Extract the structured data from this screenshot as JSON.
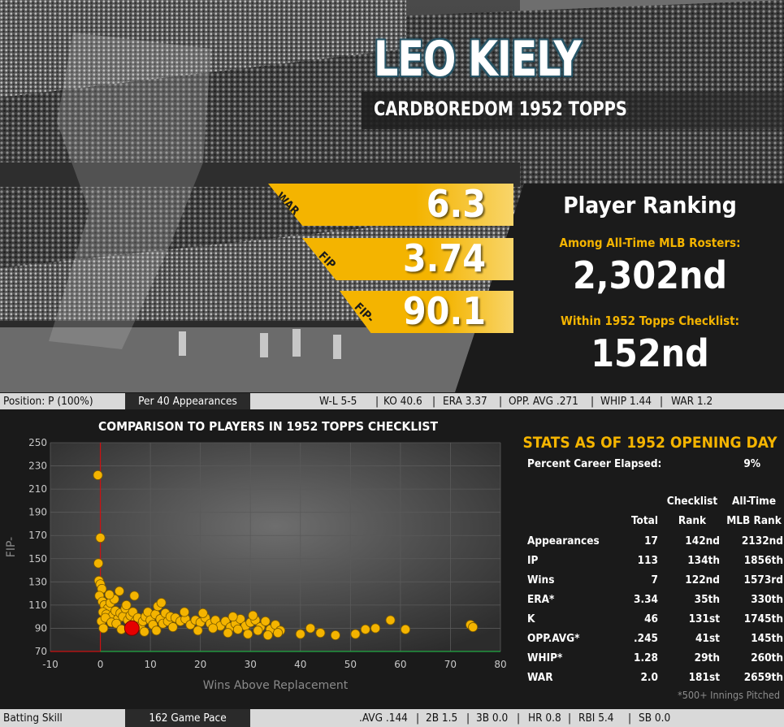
{
  "player": {
    "name": "LEO KIELY",
    "subtitle": "CARDBOREDOM 1952 TOPPS"
  },
  "headline_stats": [
    {
      "label": "WAR",
      "value": "6.3"
    },
    {
      "label": "FIP",
      "value": "3.74"
    },
    {
      "label": "FIP-",
      "value": "90.1"
    }
  ],
  "ranking": {
    "title": "Player Ranking",
    "alltime_label": "Among All-Time MLB Rosters:",
    "alltime_value": "2,302nd",
    "checklist_label": "Within 1952 Topps Checklist:",
    "checklist_value": "152nd"
  },
  "pitching_bar": {
    "position": "Position: P (100%)",
    "pace": "Per 40 Appearances",
    "items": [
      "W-L  5-5",
      "KO  40.6",
      "ERA  3.37",
      "OPP. AVG  .271",
      "WHIP  1.44",
      "WAR  1.2"
    ]
  },
  "batting_bar": {
    "label": "Batting Skill",
    "pace": "162 Game Pace",
    "items": [
      ".AVG  .144",
      "2B  1.5",
      "3B  0.0",
      "HR  0.8",
      "RBI  5.4",
      "SB  0.0"
    ]
  },
  "colors": {
    "accent": "#f4b400",
    "highlight": "#e60000",
    "panel": "#1a1a1a"
  },
  "chart_data": {
    "type": "scatter",
    "title": "COMPARISON TO PLAYERS IN 1952 TOPPS CHECKLIST",
    "xlabel": "Wins Above Replacement",
    "ylabel": "FIP-",
    "xlim": [
      -10,
      80
    ],
    "ylim": [
      70,
      250
    ],
    "xticks": [
      -10,
      0,
      10,
      20,
      30,
      40,
      50,
      60,
      70,
      80
    ],
    "yticks": [
      70,
      90,
      110,
      130,
      150,
      170,
      190,
      210,
      230,
      250
    ],
    "grid": true,
    "highlight": {
      "name": "Leo Kiely",
      "x": 6.3,
      "y": 90.1
    },
    "points": [
      [
        -0.5,
        222
      ],
      [
        0,
        168
      ],
      [
        -0.4,
        146
      ],
      [
        -0.3,
        131
      ],
      [
        0,
        128
      ],
      [
        0.3,
        124
      ],
      [
        -0.2,
        118
      ],
      [
        0.4,
        113
      ],
      [
        0.8,
        110
      ],
      [
        1.5,
        107
      ],
      [
        2.0,
        112
      ],
      [
        0.5,
        104
      ],
      [
        1.2,
        102
      ],
      [
        2.5,
        101
      ],
      [
        3.0,
        105
      ],
      [
        0.2,
        96
      ],
      [
        1.0,
        99
      ],
      [
        3.5,
        98
      ],
      [
        4.0,
        103
      ],
      [
        4.5,
        100
      ],
      [
        5.0,
        107
      ],
      [
        0.6,
        90
      ],
      [
        2.2,
        95
      ],
      [
        3.2,
        94
      ],
      [
        5.5,
        97
      ],
      [
        6.0,
        101
      ],
      [
        6.5,
        104
      ],
      [
        7.0,
        96
      ],
      [
        7.5,
        99
      ],
      [
        8.0,
        92
      ],
      [
        8.5,
        96
      ],
      [
        9.0,
        100
      ],
      [
        9.5,
        104
      ],
      [
        10,
        97
      ],
      [
        10.5,
        93
      ],
      [
        11,
        102
      ],
      [
        11.5,
        109
      ],
      [
        12,
        98
      ],
      [
        12.5,
        94
      ],
      [
        13,
        103
      ],
      [
        13.5,
        96
      ],
      [
        14,
        100
      ],
      [
        15,
        99
      ],
      [
        16,
        96
      ],
      [
        17,
        98
      ],
      [
        18,
        93
      ],
      [
        19,
        97
      ],
      [
        20,
        95
      ],
      [
        21,
        99
      ],
      [
        22,
        94
      ],
      [
        23,
        97
      ],
      [
        24,
        92
      ],
      [
        25,
        96
      ],
      [
        26,
        91
      ],
      [
        27,
        94
      ],
      [
        28,
        98
      ],
      [
        29,
        92
      ],
      [
        30,
        95
      ],
      [
        31,
        97
      ],
      [
        32,
        91
      ],
      [
        33,
        96
      ],
      [
        34,
        89
      ],
      [
        35,
        93
      ],
      [
        36,
        88
      ],
      [
        5.2,
        110
      ],
      [
        2.8,
        115
      ],
      [
        1.8,
        119
      ],
      [
        4.2,
        89
      ],
      [
        8.8,
        87
      ],
      [
        11.2,
        88
      ],
      [
        14.5,
        91
      ],
      [
        19.5,
        88
      ],
      [
        22.5,
        90
      ],
      [
        25.5,
        86
      ],
      [
        27.5,
        89
      ],
      [
        29.5,
        85
      ],
      [
        31.5,
        88
      ],
      [
        33.5,
        84
      ],
      [
        35.5,
        86
      ],
      [
        40,
        85
      ],
      [
        42,
        90
      ],
      [
        44,
        86
      ],
      [
        47,
        84
      ],
      [
        51,
        85
      ],
      [
        53,
        89
      ],
      [
        55,
        90
      ],
      [
        58,
        97
      ],
      [
        61,
        89
      ],
      [
        74,
        93
      ],
      [
        74.5,
        91
      ],
      [
        3.8,
        122
      ],
      [
        6.8,
        118
      ],
      [
        12.2,
        112
      ],
      [
        16.8,
        104
      ],
      [
        20.5,
        103
      ],
      [
        26.5,
        100
      ],
      [
        30.5,
        101
      ]
    ]
  },
  "stats_table": {
    "title": "STATS AS OF 1952 OPENING DAY",
    "career_label": "Percent Career Elapsed:",
    "career_value": "9%",
    "headers": {
      "total": "Total",
      "checklist_top": "Checklist",
      "checklist_bottom": "Rank",
      "alltime_top": "All-Time",
      "alltime_bottom": "MLB Rank"
    },
    "rows": [
      {
        "stat": "Appearances",
        "total": "17",
        "checklist": "142nd",
        "alltime": "2132nd"
      },
      {
        "stat": "IP",
        "total": "113",
        "checklist": "134th",
        "alltime": "1856th"
      },
      {
        "stat": "Wins",
        "total": "7",
        "checklist": "122nd",
        "alltime": "1573rd"
      },
      {
        "stat": "ERA*",
        "total": "3.34",
        "checklist": "35th",
        "alltime": "330th"
      },
      {
        "stat": "K",
        "total": "46",
        "checklist": "131st",
        "alltime": "1745th"
      },
      {
        "stat": "OPP.AVG*",
        "total": ".245",
        "checklist": "41st",
        "alltime": "145th"
      },
      {
        "stat": "WHIP*",
        "total": "1.28",
        "checklist": "29th",
        "alltime": "260th"
      },
      {
        "stat": "WAR",
        "total": "2.0",
        "checklist": "181st",
        "alltime": "2659th"
      }
    ],
    "footnote": "*500+ Innings Pitched"
  }
}
